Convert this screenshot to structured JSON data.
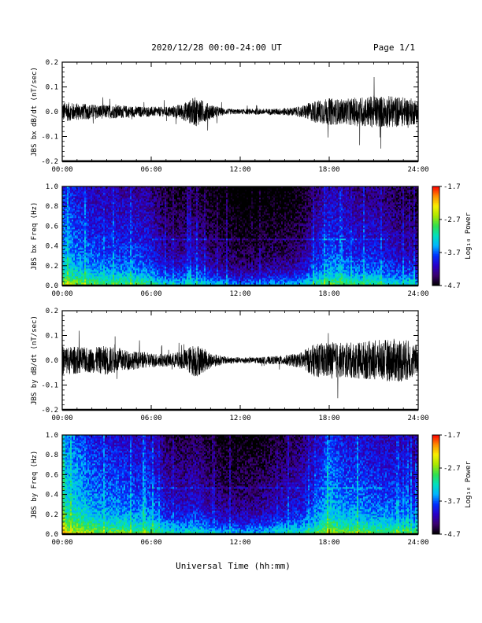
{
  "header": {
    "title": "2020/12/28  00:00-24:00 UT",
    "page": "Page 1/1"
  },
  "footer": {
    "xlabel": "Universal Time (hh:mm)"
  },
  "colorbar": {
    "label": "Log₁₀ Power",
    "ticks": [
      "-1.7",
      "-2.7",
      "-3.7",
      "-4.7"
    ],
    "tick_values": [
      -1.7,
      -2.7,
      -3.7,
      -4.7
    ],
    "range": [
      -4.7,
      -1.7
    ],
    "colormap": [
      "#000000",
      "#3a006e",
      "#2a00c8",
      "#0030ff",
      "#00b4ff",
      "#00e0c0",
      "#30e050",
      "#a8e800",
      "#f8f000",
      "#ff9000",
      "#ff0000"
    ]
  },
  "chart_data": [
    {
      "type": "line",
      "ylabel": "JBS bx dB/dt (nT/sec)",
      "xlim": [
        0,
        24
      ],
      "ylim": [
        -0.2,
        0.2
      ],
      "x_ticks": [
        "00:00",
        "06:00",
        "12:00",
        "18:00",
        "24:00"
      ],
      "x_tick_values": [
        0,
        6,
        12,
        18,
        24
      ],
      "y_ticks": [
        "0.2",
        "0.1",
        "0.0",
        "-0.1",
        "-0.2"
      ],
      "y_tick_values": [
        0.2,
        0.1,
        0.0,
        -0.1,
        -0.2
      ],
      "envelope_hours": [
        0,
        1,
        2,
        3,
        4,
        5,
        6,
        7,
        8,
        9,
        10,
        11,
        12,
        13,
        14,
        15,
        16,
        17,
        18,
        19,
        20,
        21,
        22,
        23,
        24
      ],
      "envelope_amplitude": [
        0.04,
        0.035,
        0.03,
        0.028,
        0.026,
        0.022,
        0.02,
        0.02,
        0.03,
        0.06,
        0.03,
        0.012,
        0.01,
        0.012,
        0.012,
        0.015,
        0.02,
        0.045,
        0.055,
        0.05,
        0.06,
        0.065,
        0.065,
        0.06,
        0.05
      ]
    },
    {
      "type": "heatmap",
      "ylabel": "JBS bx Freq (Hz)",
      "xlim": [
        0,
        24
      ],
      "ylim": [
        0.0,
        1.0
      ],
      "x_ticks": [
        "00:00",
        "06:00",
        "12:00",
        "18:00",
        "24:00"
      ],
      "x_tick_values": [
        0,
        6,
        12,
        18,
        24
      ],
      "y_ticks": [
        "1.0",
        "0.8",
        "0.6",
        "0.4",
        "0.2",
        "0.0"
      ],
      "y_tick_values": [
        1.0,
        0.8,
        0.6,
        0.4,
        0.2,
        0.0
      ],
      "zlim": [
        -4.7,
        -1.7
      ],
      "activity_hours": [
        0,
        1,
        2,
        3,
        4,
        5,
        6,
        7,
        8,
        9,
        10,
        11,
        12,
        13,
        14,
        15,
        16,
        17,
        18,
        19,
        20,
        21,
        22,
        23,
        24
      ],
      "activity_level": [
        -3.3,
        -3.5,
        -3.6,
        -3.7,
        -3.7,
        -3.7,
        -3.8,
        -4.1,
        -4.1,
        -4.0,
        -4.2,
        -4.3,
        -4.4,
        -4.4,
        -4.3,
        -4.3,
        -4.2,
        -3.9,
        -3.6,
        -3.7,
        -3.8,
        -3.8,
        -3.9,
        -4.0,
        -4.1
      ]
    },
    {
      "type": "line",
      "ylabel": "JBS by dB/dt (nT/sec)",
      "xlim": [
        0,
        24
      ],
      "ylim": [
        -0.2,
        0.2
      ],
      "x_ticks": [
        "00:00",
        "06:00",
        "12:00",
        "18:00",
        "24:00"
      ],
      "x_tick_values": [
        0,
        6,
        12,
        18,
        24
      ],
      "y_ticks": [
        "0.2",
        "0.1",
        "0.0",
        "-0.1",
        "-0.2"
      ],
      "y_tick_values": [
        0.2,
        0.1,
        0.0,
        -0.1,
        -0.2
      ],
      "envelope_hours": [
        0,
        1,
        2,
        3,
        4,
        5,
        6,
        7,
        8,
        9,
        10,
        11,
        12,
        13,
        14,
        15,
        16,
        17,
        18,
        19,
        20,
        21,
        22,
        23,
        24
      ],
      "envelope_amplitude": [
        0.06,
        0.055,
        0.05,
        0.06,
        0.045,
        0.035,
        0.03,
        0.025,
        0.035,
        0.07,
        0.03,
        0.015,
        0.012,
        0.012,
        0.015,
        0.02,
        0.03,
        0.065,
        0.075,
        0.07,
        0.075,
        0.08,
        0.085,
        0.09,
        0.06
      ]
    },
    {
      "type": "heatmap",
      "ylabel": "JBS by Freq (Hz)",
      "xlim": [
        0,
        24
      ],
      "ylim": [
        0.0,
        1.0
      ],
      "x_ticks": [
        "00:00",
        "06:00",
        "12:00",
        "18:00",
        "24:00"
      ],
      "x_tick_values": [
        0,
        6,
        12,
        18,
        24
      ],
      "y_ticks": [
        "1.0",
        "0.8",
        "0.6",
        "0.4",
        "0.2",
        "0.0"
      ],
      "y_tick_values": [
        1.0,
        0.8,
        0.6,
        0.4,
        0.2,
        0.0
      ],
      "zlim": [
        -4.7,
        -1.7
      ],
      "activity_hours": [
        0,
        1,
        2,
        3,
        4,
        5,
        6,
        7,
        8,
        9,
        10,
        11,
        12,
        13,
        14,
        15,
        16,
        17,
        18,
        19,
        20,
        21,
        22,
        23,
        24
      ],
      "activity_level": [
        -3.1,
        -3.2,
        -3.4,
        -3.5,
        -3.5,
        -3.6,
        -3.6,
        -3.9,
        -4.0,
        -3.9,
        -4.1,
        -4.2,
        -4.2,
        -4.2,
        -4.1,
        -4.0,
        -3.9,
        -3.7,
        -3.3,
        -3.5,
        -3.5,
        -3.6,
        -3.6,
        -3.7,
        -3.8
      ]
    }
  ]
}
